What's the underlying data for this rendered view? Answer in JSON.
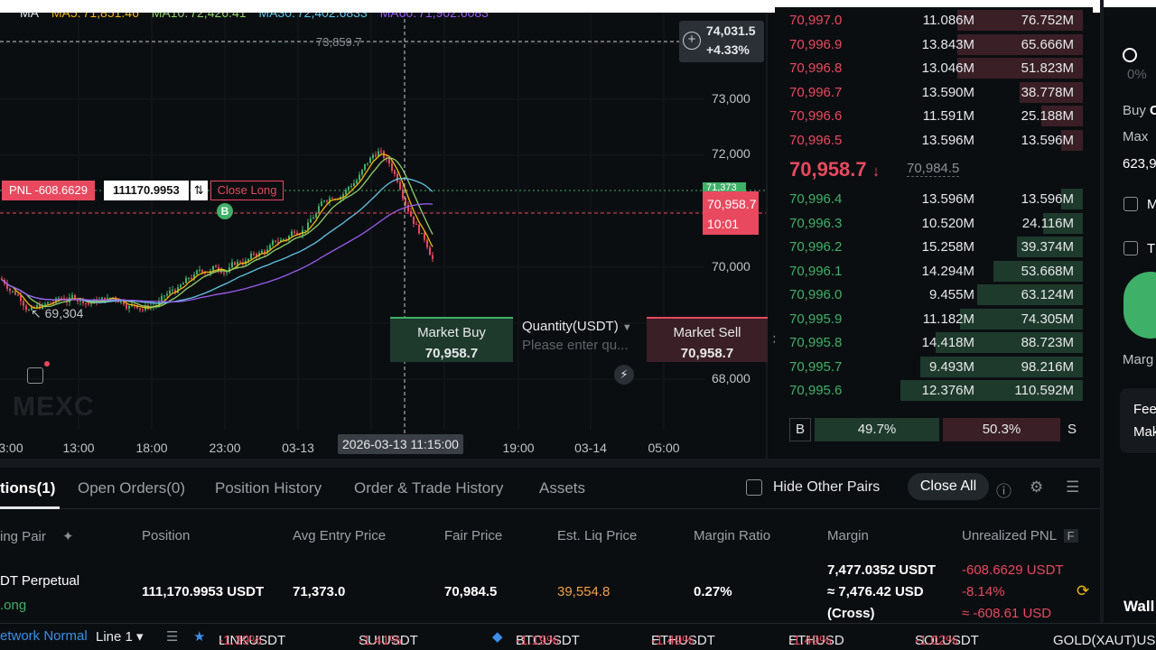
{
  "chart": {
    "ma_legend": [
      {
        "text": "MA",
        "color": "#e6e8ea"
      },
      {
        "text": "MA5:",
        "color": "#f0b90b"
      },
      {
        "text": "71,851.46",
        "color": "#f0b90b"
      },
      {
        "text": "MA10:",
        "color": "#8fd16a"
      },
      {
        "text": "72,426.41",
        "color": "#8fd16a"
      },
      {
        "text": "MA30:",
        "color": "#5fc6e8"
      },
      {
        "text": "72,402.6833",
        "color": "#5fc6e8"
      },
      {
        "text": "MA60:",
        "color": "#9b5cf0"
      },
      {
        "text": "71,902.6083",
        "color": "#9b5cf0"
      }
    ],
    "high_label": "73,859.7",
    "low_label": "69,304",
    "hover_price": "74,031.5",
    "hover_change": "+4.33%",
    "y_ticks": [
      "73,000",
      "72,000",
      "70,000",
      "68,000"
    ],
    "green_tag": "71,373",
    "current_price": "70,958.7",
    "countdown": "10:01",
    "x_ticks": [
      "3:00",
      "13:00",
      "18:00",
      "23:00",
      "03-13",
      "19:00",
      "03-14",
      "05:00"
    ],
    "x_hover": "2026-03-13 11:15:00",
    "watermark": "MEXC",
    "pnl_label": "PNL -608.6629",
    "pnl_qty": "111170.9953",
    "pnl_arrows": "⇅",
    "close_long": "Close Long",
    "b_marker": "B",
    "colors": {
      "up": "#3fb068",
      "down": "#e8495f"
    }
  },
  "quick_trade": {
    "buy_label": "Market Buy",
    "buy_price": "70,958.7",
    "qty_label": "Quantity(USDT)",
    "qty_placeholder": "Please enter qu...",
    "sell_label": "Market Sell",
    "sell_price": "70,958.7",
    "close": "×",
    "bolt": "⚡"
  },
  "order_book": {
    "asks": [
      {
        "price": "70,997.0",
        "amount": "11.086M",
        "total": "76.752M",
        "depth": 0.63
      },
      {
        "price": "70,996.9",
        "amount": "13.843M",
        "total": "65.666M",
        "depth": 0.63
      },
      {
        "price": "70,996.8",
        "amount": "13.046M",
        "total": "51.823M",
        "depth": 0.63
      },
      {
        "price": "70,996.7",
        "amount": "13.590M",
        "total": "38.778M",
        "depth": 0.32
      },
      {
        "price": "70,996.6",
        "amount": "11.591M",
        "total": "25.188M",
        "depth": 0.21
      },
      {
        "price": "70,996.5",
        "amount": "13.596M",
        "total": "13.596M",
        "depth": 0.11
      }
    ],
    "mid_price": "70,958.7",
    "mid_arrow": "↓",
    "mark_price": "70,984.5",
    "bids": [
      {
        "price": "70,996.4",
        "amount": "13.596M",
        "total": "13.596M",
        "depth": 0.11
      },
      {
        "price": "70,996.3",
        "amount": "10.520M",
        "total": "24.116M",
        "depth": 0.2
      },
      {
        "price": "70,996.2",
        "amount": "15.258M",
        "total": "39.374M",
        "depth": 0.33
      },
      {
        "price": "70,996.1",
        "amount": "14.294M",
        "total": "53.668M",
        "depth": 0.45
      },
      {
        "price": "70,996.0",
        "amount": "9.455M",
        "total": "63.124M",
        "depth": 0.53
      },
      {
        "price": "70,995.9",
        "amount": "11.182M",
        "total": "74.305M",
        "depth": 0.62
      },
      {
        "price": "70,995.8",
        "amount": "14.418M",
        "total": "88.723M",
        "depth": 0.74
      },
      {
        "price": "70,995.7",
        "amount": "9.493M",
        "total": "98.216M",
        "depth": 0.82
      },
      {
        "price": "70,995.6",
        "amount": "12.376M",
        "total": "110.592M",
        "depth": 0.92
      }
    ],
    "ratio": {
      "b": "B",
      "buy": "49.7%",
      "sell": "50.3%",
      "s": "S"
    }
  },
  "right_panel": {
    "pct": "0%",
    "buy": "Buy",
    "buy_suffix": "C",
    "max": "Max",
    "max_val": "623,9",
    "opt1": "M",
    "opt2": "T",
    "margin": "Marg",
    "fee1": "Fee",
    "fee2": "Mak",
    "wallet": "Wall"
  },
  "tabs": {
    "positions": "tions(1)",
    "open_orders": "Open Orders(0)",
    "position_history": "Position History",
    "order_history": "Order & Trade History",
    "assets": "Assets",
    "hide_other": "Hide Other Pairs",
    "close_all": "Close All"
  },
  "table": {
    "headers": [
      "ing Pair",
      "Position",
      "Avg Entry Price",
      "Fair Price",
      "Est. Liq Price",
      "Margin Ratio",
      "Margin",
      "Unrealized PNL"
    ],
    "pin": "📌",
    "f_badge": "F",
    "row": {
      "pair": "DT  Perpetual",
      "side": ".ong",
      "position": "111,170.9953 USDT",
      "avg_entry": "71,373.0",
      "fair": "70,984.5",
      "liq": "39,554.8",
      "margin_ratio": "0.27%",
      "margin_1": "7,477.0352 USDT",
      "margin_2": "≈ 7,476.42 USD",
      "margin_3": "(Cross)",
      "pnl_1": "-608.6629 USDT",
      "pnl_2": "-8.14%",
      "pnl_3": "≈ -608.61 USD"
    }
  },
  "ticker": {
    "network": "etwork Normal",
    "line": "Line 1 ▾",
    "items": [
      {
        "sym": "LINKUSDT",
        "chg": "-1.39%"
      },
      {
        "sym": "SUIUSDT",
        "chg": "-1.41%"
      },
      {
        "sym": "BTCUSDT",
        "chg": "-1.19%"
      },
      {
        "sym": "ETHUSDT",
        "chg": "-1.49%"
      },
      {
        "sym": "ETHUSD",
        "chg": "-1.49%"
      },
      {
        "sym": "SOLUSDT",
        "chg": "-1.02%"
      },
      {
        "sym": "GOLD(XAUT)US",
        "chg": ""
      }
    ]
  }
}
